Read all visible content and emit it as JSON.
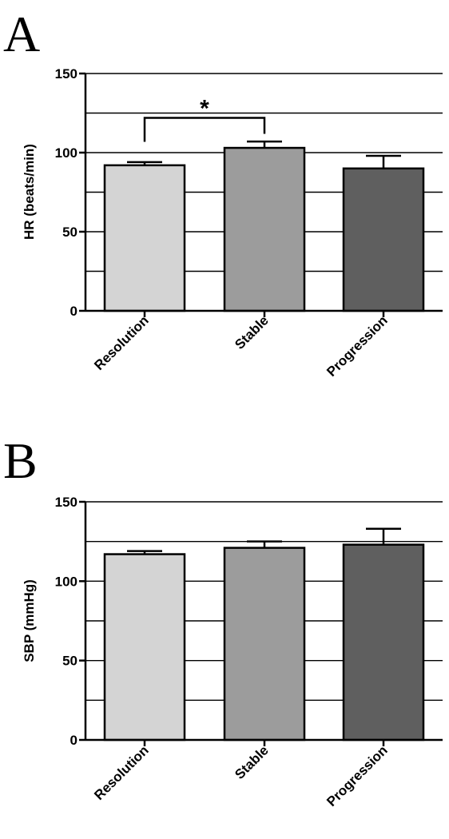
{
  "chart_data": [
    {
      "panel": "A",
      "type": "bar",
      "categories": [
        "Resolution",
        "Stable",
        "Progression"
      ],
      "values": [
        92,
        103,
        90
      ],
      "errors": [
        2,
        4,
        8
      ],
      "colors": [
        "#d4d4d4",
        "#9c9c9c",
        "#5f5f5f"
      ],
      "ylabel": "HR (beats/min)",
      "ylim": [
        0,
        150
      ],
      "yticks": [
        0,
        50,
        100,
        150
      ],
      "grid_lines": [
        25,
        50,
        75,
        100,
        125,
        150
      ],
      "significance": {
        "from": 0,
        "to": 1,
        "label": "*"
      }
    },
    {
      "panel": "B",
      "type": "bar",
      "categories": [
        "Resolution",
        "Stable",
        "Progression"
      ],
      "values": [
        117,
        121,
        123
      ],
      "errors": [
        2,
        4,
        10
      ],
      "colors": [
        "#d4d4d4",
        "#9c9c9c",
        "#5f5f5f"
      ],
      "ylabel": "SBP (mmHg)",
      "ylim": [
        0,
        150
      ],
      "yticks": [
        0,
        50,
        100,
        150
      ],
      "grid_lines": [
        25,
        50,
        75,
        100,
        125,
        150
      ]
    }
  ]
}
